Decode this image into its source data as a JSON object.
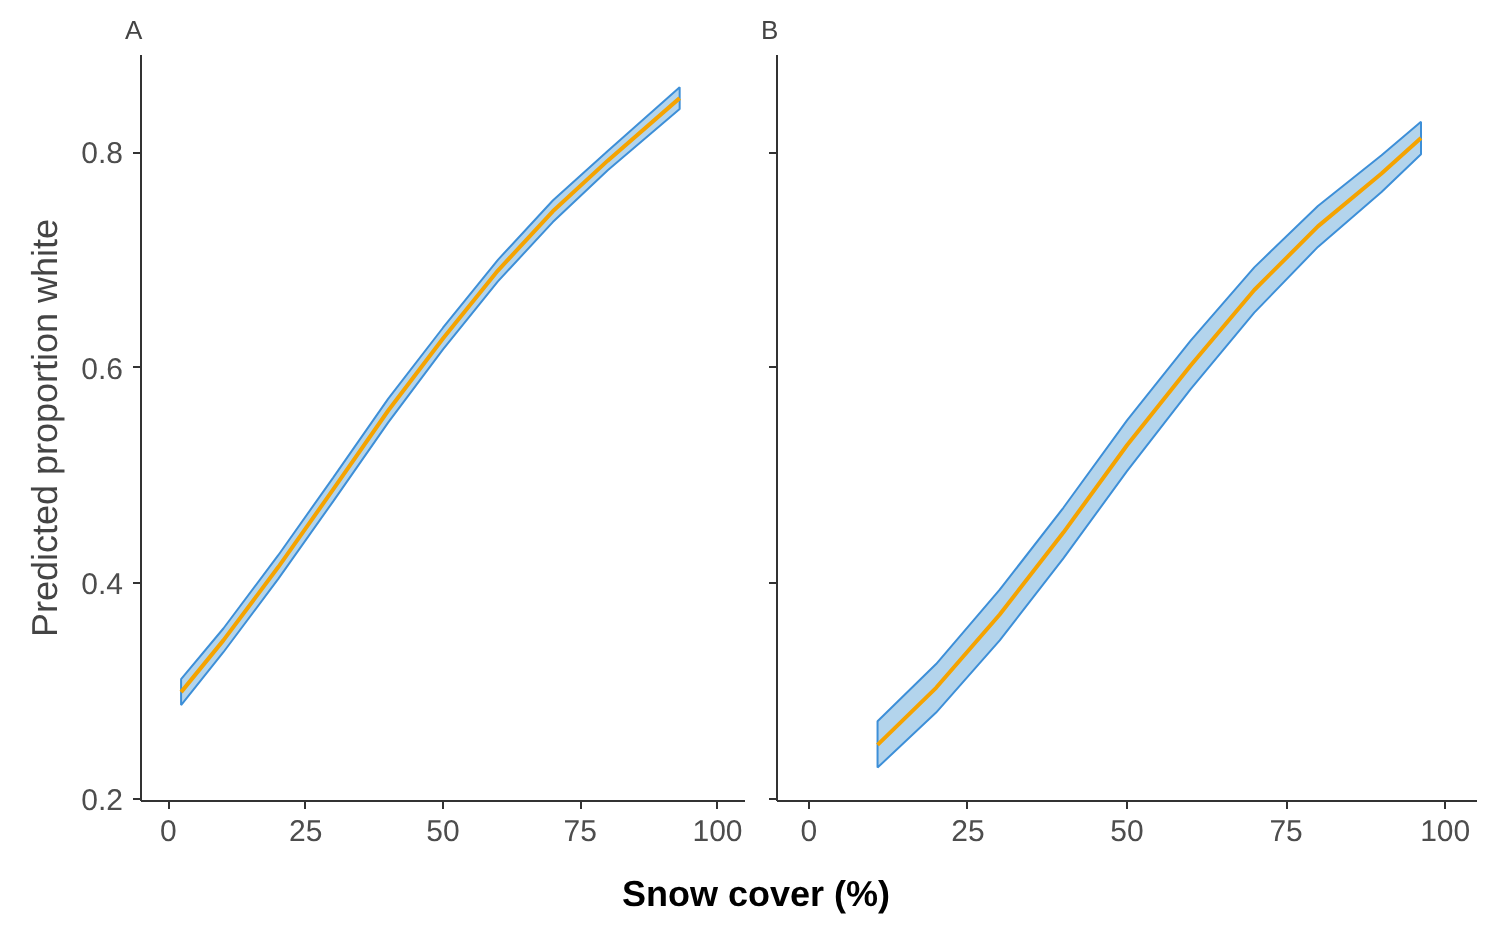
{
  "chart_data": [
    {
      "type": "line",
      "title": "A",
      "ylabel": "Predicted proportion white",
      "xlabel": "Snow cover (%)",
      "xlim": [
        -5,
        105
      ],
      "xticks": [
        0,
        25,
        50,
        75,
        100
      ],
      "ylim": [
        0.198,
        0.89
      ],
      "yticks": [
        {
          "value": 0.2,
          "label": "0.2"
        },
        {
          "value": 0.4,
          "label": "0.4"
        },
        {
          "value": 0.6,
          "label": "0.6"
        },
        {
          "value": 0.8,
          "label": "0.8"
        }
      ],
      "grid": false,
      "series": [
        {
          "color": "#f5a300",
          "x": [
            2.3,
            10,
            20,
            30,
            40,
            50,
            60,
            70,
            80,
            93.1
          ],
          "values": [
            0.299,
            0.347,
            0.415,
            0.487,
            0.56,
            0.627,
            0.69,
            0.745,
            0.792,
            0.85
          ],
          "lower": [
            0.287,
            0.336,
            0.404,
            0.476,
            0.549,
            0.617,
            0.68,
            0.735,
            0.783,
            0.84
          ],
          "upper": [
            0.311,
            0.358,
            0.426,
            0.498,
            0.571,
            0.637,
            0.7,
            0.755,
            0.801,
            0.86
          ]
        }
      ]
    },
    {
      "type": "line",
      "title": "B",
      "xlim": [
        -5,
        105
      ],
      "xticks": [
        0,
        25,
        50,
        75,
        100
      ],
      "ylim": [
        0.198,
        0.89
      ],
      "yticks": [
        0.2,
        0.4,
        0.6,
        0.8
      ],
      "tick_labels": "x",
      "grid": false,
      "series": [
        {
          "color": "#f5a300",
          "x": [
            10.8,
            20,
            30,
            40,
            50,
            60,
            70,
            80,
            90,
            96.2
          ],
          "values": [
            0.25,
            0.303,
            0.371,
            0.447,
            0.528,
            0.602,
            0.672,
            0.731,
            0.78,
            0.813
          ],
          "lower": [
            0.229,
            0.28,
            0.347,
            0.423,
            0.504,
            0.58,
            0.651,
            0.712,
            0.763,
            0.798
          ],
          "upper": [
            0.272,
            0.325,
            0.394,
            0.47,
            0.551,
            0.625,
            0.693,
            0.75,
            0.797,
            0.828
          ]
        }
      ]
    }
  ]
}
